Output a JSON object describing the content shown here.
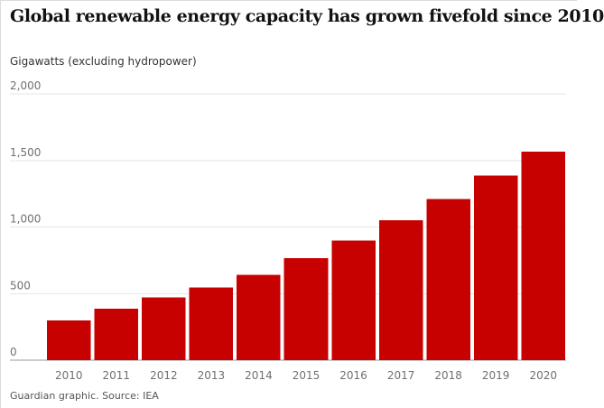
{
  "chart_data": {
    "type": "bar",
    "title": "Global renewable energy capacity has grown fivefold since 2010",
    "subtitle": "Gigawatts (excluding hydropower)",
    "xlabel": "",
    "ylabel": "",
    "categories": [
      "2010",
      "2011",
      "2012",
      "2013",
      "2014",
      "2015",
      "2016",
      "2017",
      "2018",
      "2019",
      "2020"
    ],
    "values": [
      300,
      385,
      470,
      545,
      640,
      765,
      900,
      1050,
      1210,
      1385,
      1565
    ],
    "ylim": [
      0,
      2000
    ],
    "yticks": [
      {
        "value": 0,
        "label": "0"
      },
      {
        "value": 500,
        "label": "500"
      },
      {
        "value": 1000,
        "label": "1,000"
      },
      {
        "value": 1500,
        "label": "1,500"
      },
      {
        "value": 2000,
        "label": "2,000"
      }
    ],
    "grid": true,
    "bar_color": "#c70000",
    "source": "Guardian graphic. Source: IEA"
  }
}
